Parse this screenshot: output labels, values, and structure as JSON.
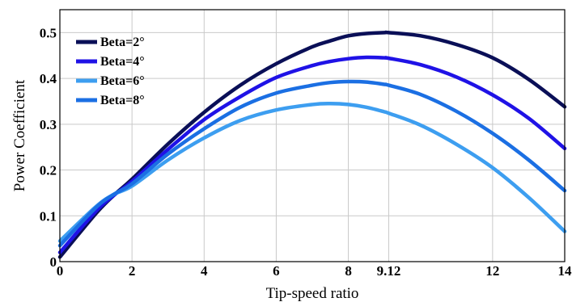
{
  "chart_data": {
    "type": "line",
    "xlabel": "Tip-speed ratio",
    "ylabel": "Power Coefficient",
    "xlim": [
      0,
      14
    ],
    "ylim": [
      0,
      0.55
    ],
    "xticks": [
      0,
      2,
      4,
      6,
      8,
      9.12,
      12,
      14
    ],
    "xtick_labels": [
      "0",
      "2",
      "4",
      "6",
      "8",
      "9.12",
      "12",
      "14"
    ],
    "xgrid": [
      0,
      2,
      4,
      6,
      8,
      9.12,
      12,
      14
    ],
    "yticks": [
      0,
      0.1,
      0.2,
      0.3,
      0.4,
      0.5
    ],
    "ytick_labels": [
      "0",
      "0.1",
      "0.2",
      "0.3",
      "0.4",
      "0.5"
    ],
    "grid": true,
    "legend_position": "top-left",
    "x": [
      0,
      1,
      1.5,
      2,
      3,
      4,
      5,
      6,
      7,
      7.5,
      8,
      8.5,
      9,
      9.12,
      10,
      11,
      12,
      13,
      14
    ],
    "series": [
      {
        "name": "Beta=2°",
        "color": "#0a0f57",
        "values": [
          0.01,
          0.105,
          0.145,
          0.18,
          0.257,
          0.326,
          0.385,
          0.432,
          0.469,
          0.482,
          0.493,
          0.498,
          0.5,
          0.5,
          0.493,
          0.474,
          0.445,
          0.398,
          0.338
        ]
      },
      {
        "name": "Beta=4°",
        "color": "#1f12e6",
        "values": [
          0.02,
          0.11,
          0.145,
          0.175,
          0.245,
          0.31,
          0.36,
          0.402,
          0.428,
          0.437,
          0.443,
          0.446,
          0.445,
          0.444,
          0.43,
          0.403,
          0.364,
          0.313,
          0.247
        ]
      },
      {
        "name": "Beta=6°",
        "color": "#3d9ef0",
        "values": [
          0.045,
          0.12,
          0.147,
          0.165,
          0.222,
          0.27,
          0.308,
          0.331,
          0.343,
          0.345,
          0.343,
          0.337,
          0.327,
          0.324,
          0.298,
          0.256,
          0.205,
          0.14,
          0.066
        ]
      },
      {
        "name": "Beta=8°",
        "color": "#1b6fe3",
        "values": [
          0.035,
          0.118,
          0.147,
          0.17,
          0.235,
          0.29,
          0.337,
          0.368,
          0.385,
          0.391,
          0.393,
          0.392,
          0.387,
          0.385,
          0.365,
          0.328,
          0.28,
          0.222,
          0.155
        ]
      }
    ]
  }
}
